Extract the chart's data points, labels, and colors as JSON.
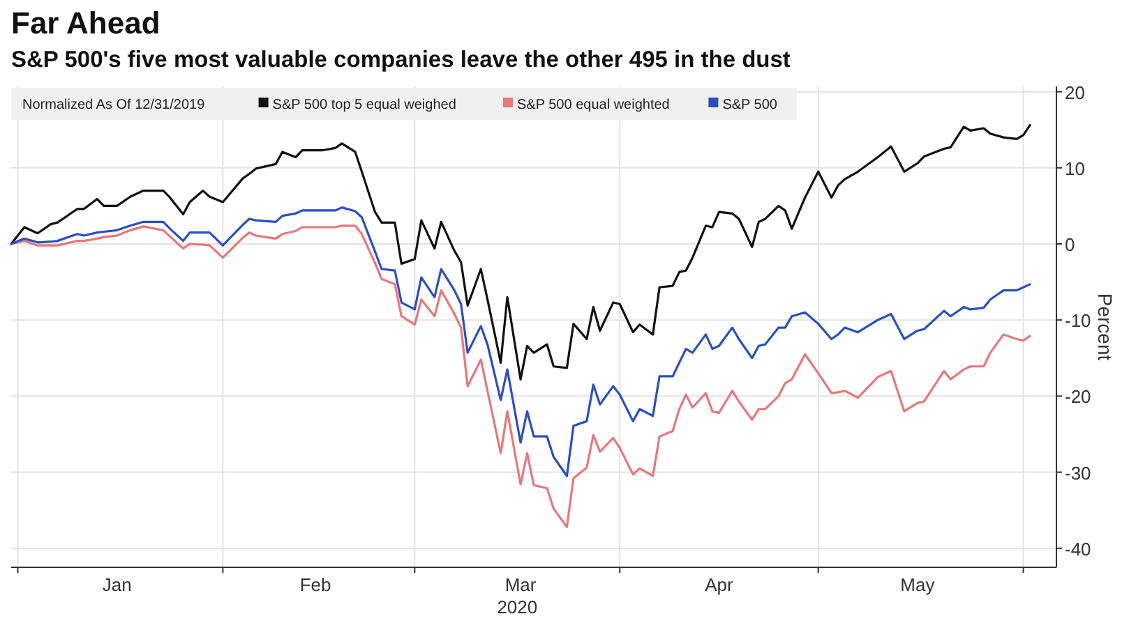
{
  "chart_data": {
    "type": "line",
    "title": "Far Ahead",
    "subtitle": "S&P 500's five most valuable companies leave the other 495 in the dust",
    "ylabel": "Percent",
    "xlabel": "2020",
    "legend_title": "Normalized As Of 12/31/2019",
    "legend": "top left",
    "grid": true,
    "line_style": "solid",
    "marker": "none",
    "x": [
      "2019-12-31",
      "2020-01-02",
      "2020-01-04",
      "2020-01-06",
      "2020-01-07",
      "2020-01-10",
      "2020-01-11",
      "2020-01-13",
      "2020-01-14",
      "2020-01-16",
      "2020-01-18",
      "2020-01-20",
      "2020-01-23",
      "2020-01-24",
      "2020-01-26",
      "2020-01-27",
      "2020-01-29",
      "2020-01-30",
      "2020-02-01",
      "2020-02-04",
      "2020-02-05",
      "2020-02-06",
      "2020-02-09",
      "2020-02-10",
      "2020-02-12",
      "2020-02-13",
      "2020-02-16",
      "2020-02-18",
      "2020-02-19",
      "2020-02-21",
      "2020-02-22",
      "2020-02-24",
      "2020-02-25",
      "2020-02-27",
      "2020-02-28",
      "2020-03-01",
      "2020-03-02",
      "2020-03-04",
      "2020-03-05",
      "2020-03-07",
      "2020-03-08",
      "2020-03-09",
      "2020-03-11",
      "2020-03-12",
      "2020-03-14",
      "2020-03-15",
      "2020-03-17",
      "2020-03-18",
      "2020-03-19",
      "2020-03-21",
      "2020-03-22",
      "2020-03-24",
      "2020-03-25",
      "2020-03-27",
      "2020-03-28",
      "2020-03-29",
      "2020-03-31",
      "2020-04-01",
      "2020-04-03",
      "2020-04-04",
      "2020-04-06",
      "2020-04-07",
      "2020-04-09",
      "2020-04-10",
      "2020-04-11",
      "2020-04-12",
      "2020-04-14",
      "2020-04-15",
      "2020-04-16",
      "2020-04-18",
      "2020-04-19",
      "2020-04-21",
      "2020-04-22",
      "2020-04-23",
      "2020-04-25",
      "2020-04-26",
      "2020-04-27",
      "2020-04-29",
      "2020-05-01",
      "2020-05-03",
      "2020-05-04",
      "2020-05-05",
      "2020-05-07",
      "2020-05-10",
      "2020-05-12",
      "2020-05-14",
      "2020-05-16",
      "2020-05-17",
      "2020-05-20",
      "2020-05-21",
      "2020-05-23",
      "2020-05-24",
      "2020-05-26",
      "2020-05-27",
      "2020-05-29",
      "2020-05-31",
      "2020-06-01",
      "2020-06-02"
    ],
    "series": [
      {
        "name": "S&P 500 top 5 equal weighed",
        "color": "#111111",
        "values": [
          0,
          2.2,
          1.4,
          2.6,
          2.8,
          4.6,
          4.6,
          5.9,
          5.0,
          5.0,
          6.2,
          7.0,
          7.0,
          6.1,
          3.9,
          5.5,
          7.0,
          6.2,
          5.5,
          8.6,
          9.2,
          9.9,
          10.5,
          12.1,
          11.4,
          12.3,
          12.3,
          12.6,
          13.2,
          12.1,
          9.5,
          4.2,
          2.8,
          2.8,
          -2.6,
          -2.0,
          3.1,
          -0.6,
          2.9,
          -0.9,
          -2.4,
          -8.1,
          -3.3,
          -7.3,
          -15.6,
          -7.0,
          -17.8,
          -13.4,
          -14.3,
          -13.2,
          -16.1,
          -16.3,
          -10.5,
          -12.5,
          -8.3,
          -11.4,
          -7.7,
          -7.9,
          -11.6,
          -10.6,
          -11.9,
          -5.7,
          -5.5,
          -3.7,
          -3.5,
          -1.8,
          2.4,
          2.2,
          4.2,
          4.0,
          3.3,
          -0.4,
          2.9,
          3.3,
          5.0,
          4.4,
          2.0,
          6.1,
          9.5,
          6.1,
          7.7,
          8.5,
          9.5,
          11.4,
          12.8,
          9.5,
          10.6,
          11.5,
          12.5,
          12.7,
          15.4,
          14.9,
          15.2,
          14.5,
          14.0,
          13.8,
          14.3,
          15.6
        ]
      },
      {
        "name": "S&P 500 equal weighted",
        "color": "#e8777a",
        "values": [
          0,
          0.4,
          -0.2,
          -0.2,
          -0.2,
          0.4,
          0.4,
          0.7,
          0.9,
          1.1,
          1.8,
          2.3,
          1.8,
          1.0,
          -0.6,
          0.0,
          -0.1,
          -0.2,
          -1.8,
          0.8,
          1.5,
          1.1,
          0.7,
          1.3,
          1.7,
          2.2,
          2.2,
          2.2,
          2.4,
          2.4,
          1.3,
          -2.5,
          -4.6,
          -5.3,
          -9.5,
          -10.6,
          -7.3,
          -9.5,
          -6.1,
          -9.2,
          -11.0,
          -18.7,
          -15.2,
          -19.3,
          -27.5,
          -22.0,
          -31.6,
          -27.5,
          -31.7,
          -32.1,
          -34.8,
          -37.2,
          -30.8,
          -29.4,
          -25.1,
          -27.3,
          -25.5,
          -26.8,
          -30.3,
          -29.5,
          -30.5,
          -25.3,
          -24.6,
          -21.7,
          -19.8,
          -21.5,
          -19.6,
          -22.0,
          -22.2,
          -19.3,
          -20.7,
          -23.1,
          -21.7,
          -21.7,
          -20.0,
          -18.3,
          -17.8,
          -14.5,
          -17.0,
          -19.6,
          -19.5,
          -19.3,
          -20.2,
          -17.5,
          -16.7,
          -22.0,
          -20.9,
          -20.7,
          -16.7,
          -17.8,
          -16.5,
          -16.1,
          -16.1,
          -14.3,
          -11.9,
          -12.5,
          -12.7,
          -12.1
        ]
      },
      {
        "name": "S&P 500",
        "color": "#2a4fc0",
        "values": [
          0,
          0.7,
          0.2,
          0.3,
          0.4,
          1.3,
          1.1,
          1.5,
          1.6,
          1.8,
          2.4,
          2.9,
          2.9,
          2.0,
          0.4,
          1.5,
          1.5,
          1.5,
          -0.2,
          2.5,
          3.3,
          3.1,
          2.9,
          3.7,
          4.0,
          4.4,
          4.4,
          4.4,
          4.8,
          4.3,
          3.5,
          -1.0,
          -3.3,
          -3.5,
          -7.7,
          -8.6,
          -4.4,
          -7.0,
          -3.3,
          -6.1,
          -7.9,
          -14.3,
          -10.8,
          -13.2,
          -20.5,
          -16.5,
          -26.1,
          -22.0,
          -25.3,
          -25.3,
          -28.0,
          -30.5,
          -23.9,
          -23.3,
          -18.5,
          -21.1,
          -18.7,
          -19.8,
          -23.3,
          -21.7,
          -22.6,
          -17.4,
          -17.4,
          -15.6,
          -13.8,
          -14.3,
          -11.9,
          -13.8,
          -13.4,
          -11.0,
          -12.5,
          -15.0,
          -13.4,
          -13.2,
          -11.0,
          -11.0,
          -9.5,
          -9.0,
          -10.5,
          -12.5,
          -11.9,
          -11.0,
          -11.6,
          -10.0,
          -9.2,
          -12.5,
          -11.4,
          -11.2,
          -8.8,
          -9.5,
          -8.3,
          -8.6,
          -8.4,
          -7.3,
          -6.1,
          -6.1,
          -5.7,
          -5.3
        ]
      }
    ],
    "xlim": [
      "2019-12-31",
      "2020-06-06"
    ],
    "xticks": [
      {
        "value": "2020-01-01",
        "label": null
      },
      {
        "value": "2020-01-16",
        "label": "Jan"
      },
      {
        "value": "2020-02-01",
        "label": null
      },
      {
        "value": "2020-02-15",
        "label": "Feb"
      },
      {
        "value": "2020-03-01",
        "label": null
      },
      {
        "value": "2020-03-17",
        "label": "Mar"
      },
      {
        "value": "2020-04-01",
        "label": null
      },
      {
        "value": "2020-04-16",
        "label": "Apr"
      },
      {
        "value": "2020-05-01",
        "label": null
      },
      {
        "value": "2020-05-16",
        "label": "May"
      },
      {
        "value": "2020-06-01",
        "label": null
      }
    ],
    "ylim": [
      -42.5,
      20.7
    ],
    "yticks": [
      -40,
      -30,
      -20,
      -10,
      0,
      10,
      20
    ]
  }
}
